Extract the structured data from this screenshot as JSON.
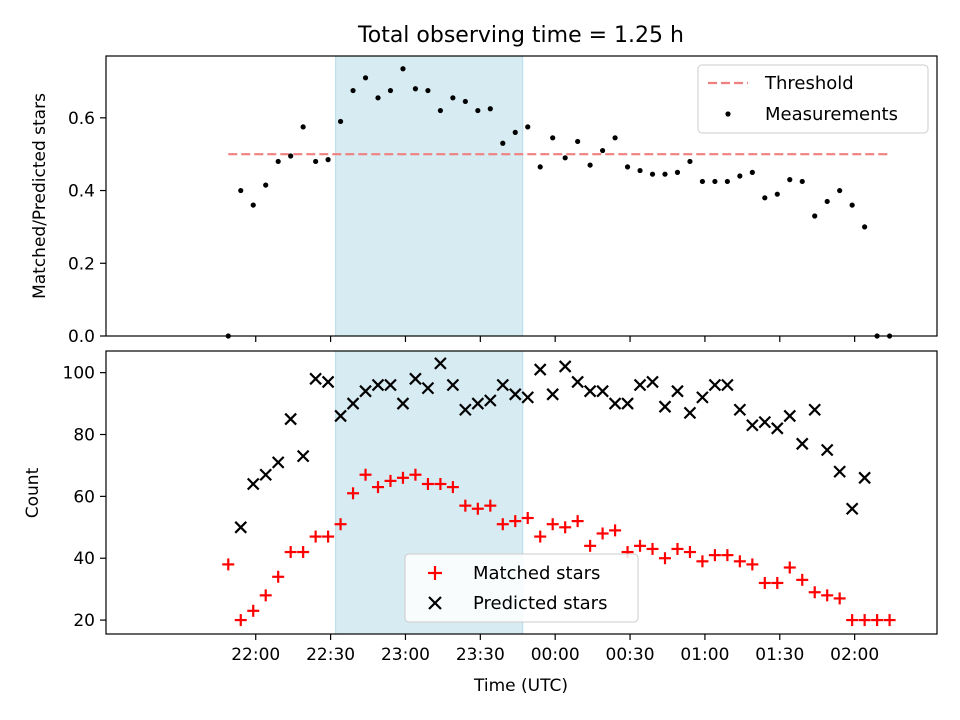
{
  "figure": {
    "title": "Total observing time = 1.25 h",
    "xlabel": "Time (UTC)",
    "x_ticks": [
      "22:00",
      "22:30",
      "23:00",
      "23:30",
      "00:00",
      "00:30",
      "01:00",
      "01:30",
      "02:00"
    ],
    "x_range_minutes": [
      -60,
      273
    ],
    "highlight_span": [
      "22:32",
      "23:47"
    ],
    "colors": {
      "highlight": "#add8e6",
      "threshold": "#f08080",
      "matched": "#ff0000",
      "predicted": "#000000",
      "measurement": "#000000"
    }
  },
  "chart_data": [
    {
      "type": "scatter",
      "ylabel": "Matched/Predicted stars",
      "ylim": [
        0,
        0.77
      ],
      "y_ticks": [
        "0.0",
        "0.2",
        "0.4",
        "0.6"
      ],
      "threshold": 0.5,
      "legend": {
        "threshold": "Threshold",
        "measurements": "Measurements",
        "placement": "upper right"
      },
      "series": [
        {
          "name": "Measurements",
          "x": [
            "21:49",
            "21:54",
            "21:59",
            "22:04",
            "22:09",
            "22:14",
            "22:19",
            "22:24",
            "22:29",
            "22:34",
            "22:39",
            "22:44",
            "22:49",
            "22:54",
            "22:59",
            "23:04",
            "23:09",
            "23:14",
            "23:19",
            "23:24",
            "23:29",
            "23:34",
            "23:39",
            "23:44",
            "23:49",
            "23:54",
            "23:59",
            "00:04",
            "00:09",
            "00:14",
            "00:19",
            "00:24",
            "00:29",
            "00:34",
            "00:39",
            "00:44",
            "00:49",
            "00:54",
            "00:59",
            "01:04",
            "01:09",
            "01:14",
            "01:19",
            "01:24",
            "01:29",
            "01:34",
            "01:39",
            "01:44",
            "01:49",
            "01:54",
            "01:59",
            "02:04",
            "02:09",
            "02:14"
          ],
          "y": [
            0.0,
            0.4,
            0.36,
            0.415,
            0.48,
            0.495,
            0.575,
            0.48,
            0.485,
            0.59,
            0.675,
            0.71,
            0.655,
            0.675,
            0.735,
            0.68,
            0.675,
            0.62,
            0.655,
            0.645,
            0.62,
            0.625,
            0.53,
            0.56,
            0.575,
            0.465,
            0.545,
            0.49,
            0.535,
            0.47,
            0.51,
            0.545,
            0.465,
            0.455,
            0.445,
            0.445,
            0.45,
            0.48,
            0.425,
            0.425,
            0.425,
            0.44,
            0.45,
            0.38,
            0.39,
            0.43,
            0.425,
            0.33,
            0.37,
            0.4,
            0.36,
            0.3,
            0.0,
            0.0
          ]
        }
      ]
    },
    {
      "type": "scatter",
      "ylabel": "Count",
      "ylim": [
        15.5,
        107
      ],
      "y_ticks": [
        "20",
        "40",
        "60",
        "80",
        "100"
      ],
      "legend": {
        "matched": "Matched stars",
        "predicted": "Predicted stars",
        "placement": "lower center"
      },
      "series": [
        {
          "name": "Matched stars",
          "x": [
            "21:49",
            "21:54",
            "21:59",
            "22:04",
            "22:09",
            "22:14",
            "22:19",
            "22:24",
            "22:29",
            "22:34",
            "22:39",
            "22:44",
            "22:49",
            "22:54",
            "22:59",
            "23:04",
            "23:09",
            "23:14",
            "23:19",
            "23:24",
            "23:29",
            "23:34",
            "23:39",
            "23:44",
            "23:49",
            "23:54",
            "23:59",
            "00:04",
            "00:09",
            "00:14",
            "00:19",
            "00:24",
            "00:29",
            "00:34",
            "00:39",
            "00:44",
            "00:49",
            "00:54",
            "00:59",
            "01:04",
            "01:09",
            "01:14",
            "01:19",
            "01:24",
            "01:29",
            "01:34",
            "01:39",
            "01:44",
            "01:49",
            "01:54",
            "01:59",
            "02:04",
            "02:09",
            "02:14"
          ],
          "y": [
            38,
            20,
            23,
            28,
            34,
            42,
            42,
            47,
            47,
            51,
            61,
            67,
            63,
            65,
            66,
            67,
            64,
            64,
            63,
            57,
            56,
            57,
            51,
            52,
            53,
            47,
            51,
            50,
            52,
            44,
            48,
            49,
            42,
            44,
            43,
            40,
            43,
            42,
            39,
            41,
            41,
            39,
            38,
            32,
            32,
            37,
            33,
            29,
            28,
            27,
            20,
            20,
            20,
            20
          ]
        },
        {
          "name": "Predicted stars",
          "x": [
            "21:54",
            "21:59",
            "22:04",
            "22:09",
            "22:14",
            "22:19",
            "22:24",
            "22:29",
            "22:34",
            "22:39",
            "22:44",
            "22:49",
            "22:54",
            "22:59",
            "23:04",
            "23:09",
            "23:14",
            "23:19",
            "23:24",
            "23:29",
            "23:34",
            "23:39",
            "23:44",
            "23:49",
            "23:54",
            "23:59",
            "00:04",
            "00:09",
            "00:14",
            "00:19",
            "00:24",
            "00:29",
            "00:34",
            "00:39",
            "00:44",
            "00:49",
            "00:54",
            "00:59",
            "01:04",
            "01:09",
            "01:14",
            "01:19",
            "01:24",
            "01:29",
            "01:34",
            "01:39",
            "01:44",
            "01:49",
            "01:54",
            "01:59",
            "02:04"
          ],
          "y": [
            50,
            64,
            67,
            71,
            85,
            73,
            98,
            97,
            86,
            90,
            94,
            96,
            96,
            90,
            98,
            95,
            103,
            96,
            88,
            90,
            91,
            96,
            93,
            92,
            101,
            93,
            102,
            97,
            94,
            94,
            90,
            90,
            96,
            97,
            89,
            94,
            87,
            92,
            96,
            96,
            88,
            83,
            84,
            82,
            86,
            77,
            88,
            75,
            68,
            56,
            66
          ]
        }
      ]
    }
  ]
}
